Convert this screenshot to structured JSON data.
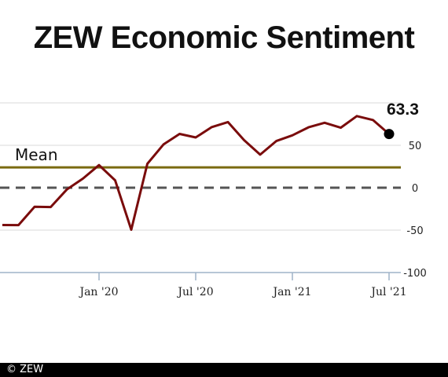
{
  "title": "ZEW Economic Sentiment",
  "footer": "© ZEW",
  "colors": {
    "line": "#7a0c0c",
    "mean": "#7a6a10",
    "zero": "#555555",
    "grid": "#d8d8d8",
    "axis": "#9fb3c8"
  },
  "chart_data": {
    "type": "line",
    "title": "ZEW Economic Sentiment",
    "x": [
      "2019-07",
      "2019-08",
      "2019-09",
      "2019-10",
      "2019-11",
      "2019-12",
      "2020-01",
      "2020-02",
      "2020-03",
      "2020-04",
      "2020-05",
      "2020-06",
      "2020-07",
      "2020-08",
      "2020-09",
      "2020-10",
      "2020-11",
      "2020-12",
      "2021-01",
      "2021-02",
      "2021-03",
      "2021-04",
      "2021-05",
      "2021-06",
      "2021-07"
    ],
    "series": [
      {
        "values": [
          -44,
          -44.1,
          -22.5,
          -22.8,
          -2.1,
          10.7,
          26.7,
          8.7,
          -49.5,
          28.2,
          51,
          63.4,
          59.3,
          71.5,
          77.4,
          56.1,
          39,
          55,
          61.8,
          71.2,
          76.6,
          70.7,
          84.4,
          79.8,
          63.3
        ]
      }
    ],
    "mean": 24,
    "mean_label": "Mean",
    "last_value_label": "63.3",
    "x_ticks": [
      "Jan '20",
      "Jul '20",
      "Jan '21",
      "Jul '21"
    ],
    "y_ticks": [
      50,
      0,
      -50,
      -100
    ],
    "ylim": [
      -100,
      100
    ],
    "grid": true,
    "xlabel": "",
    "ylabel": ""
  }
}
